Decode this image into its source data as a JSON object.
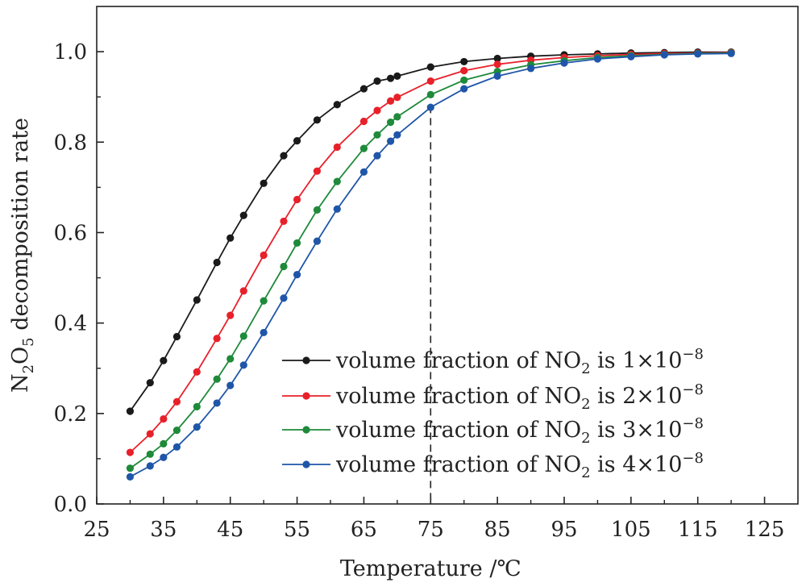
{
  "chart_data": {
    "type": "line",
    "title": "",
    "xlabel": "Temperature /℃",
    "ylabel_parts": [
      "N",
      "2",
      "O",
      "5",
      " decomposition rate"
    ],
    "xlim": [
      25,
      130
    ],
    "ylim": [
      0.0,
      1.1
    ],
    "xticks": [
      25,
      35,
      45,
      55,
      65,
      75,
      85,
      95,
      105,
      115,
      125
    ],
    "yticks": [
      "0.0",
      "0.2",
      "0.4",
      "0.6",
      "0.8",
      "1.0"
    ],
    "reference_line_x": 75,
    "legend_position": "lower-right",
    "series": [
      {
        "name": "volume fraction of NO2 is 1×10-8",
        "legend_parts": [
          "volume fraction of NO",
          "2",
          " is 1×10",
          "−8"
        ],
        "color": "#1a1a1a",
        "x": [
          30,
          33,
          35,
          37,
          40,
          43,
          45,
          47,
          50,
          53,
          55,
          58,
          61,
          65,
          67,
          69,
          70,
          75,
          80,
          85,
          90,
          95,
          100,
          105,
          110,
          115,
          120
        ],
        "values": [
          0.205,
          0.268,
          0.317,
          0.37,
          0.451,
          0.534,
          0.588,
          0.638,
          0.709,
          0.77,
          0.803,
          0.849,
          0.883,
          0.918,
          0.935,
          0.941,
          0.946,
          0.966,
          0.978,
          0.985,
          0.99,
          0.993,
          0.995,
          0.997,
          0.998,
          0.999,
          0.999
        ]
      },
      {
        "name": "volume fraction of NO2 is 2×10-8",
        "legend_parts": [
          "volume fraction of NO",
          "2",
          " is 2×10",
          "−8"
        ],
        "color": "#e8202a",
        "x": [
          30,
          33,
          35,
          37,
          40,
          43,
          45,
          47,
          50,
          53,
          55,
          58,
          61,
          65,
          67,
          69,
          70,
          75,
          80,
          85,
          90,
          95,
          100,
          105,
          110,
          115,
          120
        ],
        "values": [
          0.114,
          0.155,
          0.188,
          0.226,
          0.292,
          0.366,
          0.417,
          0.471,
          0.55,
          0.625,
          0.673,
          0.736,
          0.789,
          0.846,
          0.87,
          0.891,
          0.899,
          0.935,
          0.958,
          0.972,
          0.981,
          0.987,
          0.991,
          0.994,
          0.996,
          0.997,
          0.998
        ]
      },
      {
        "name": "volume fraction of NO2 is 3×10-8",
        "legend_parts": [
          "volume fraction of NO",
          "2",
          " is 3×10",
          "−8"
        ],
        "color": "#1e8a3a",
        "x": [
          30,
          33,
          35,
          37,
          40,
          43,
          45,
          47,
          50,
          53,
          55,
          58,
          61,
          65,
          67,
          69,
          70,
          75,
          80,
          85,
          90,
          95,
          100,
          105,
          110,
          115,
          120
        ],
        "values": [
          0.079,
          0.11,
          0.133,
          0.163,
          0.215,
          0.276,
          0.321,
          0.371,
          0.449,
          0.525,
          0.577,
          0.65,
          0.713,
          0.786,
          0.816,
          0.844,
          0.856,
          0.905,
          0.937,
          0.956,
          0.971,
          0.98,
          0.987,
          0.991,
          0.994,
          0.996,
          0.997
        ]
      },
      {
        "name": "volume fraction of NO2 is 4×10-8",
        "legend_parts": [
          "volume fraction of NO",
          "2",
          " is 4×10",
          "−8"
        ],
        "color": "#1f56a8",
        "x": [
          30,
          33,
          35,
          37,
          40,
          43,
          45,
          47,
          50,
          53,
          55,
          58,
          61,
          65,
          67,
          69,
          70,
          75,
          80,
          85,
          90,
          95,
          100,
          105,
          110,
          115,
          120
        ],
        "values": [
          0.06,
          0.084,
          0.103,
          0.126,
          0.17,
          0.223,
          0.262,
          0.307,
          0.379,
          0.455,
          0.507,
          0.581,
          0.652,
          0.734,
          0.77,
          0.802,
          0.816,
          0.877,
          0.918,
          0.946,
          0.963,
          0.975,
          0.984,
          0.989,
          0.993,
          0.995,
          0.996
        ]
      }
    ]
  }
}
